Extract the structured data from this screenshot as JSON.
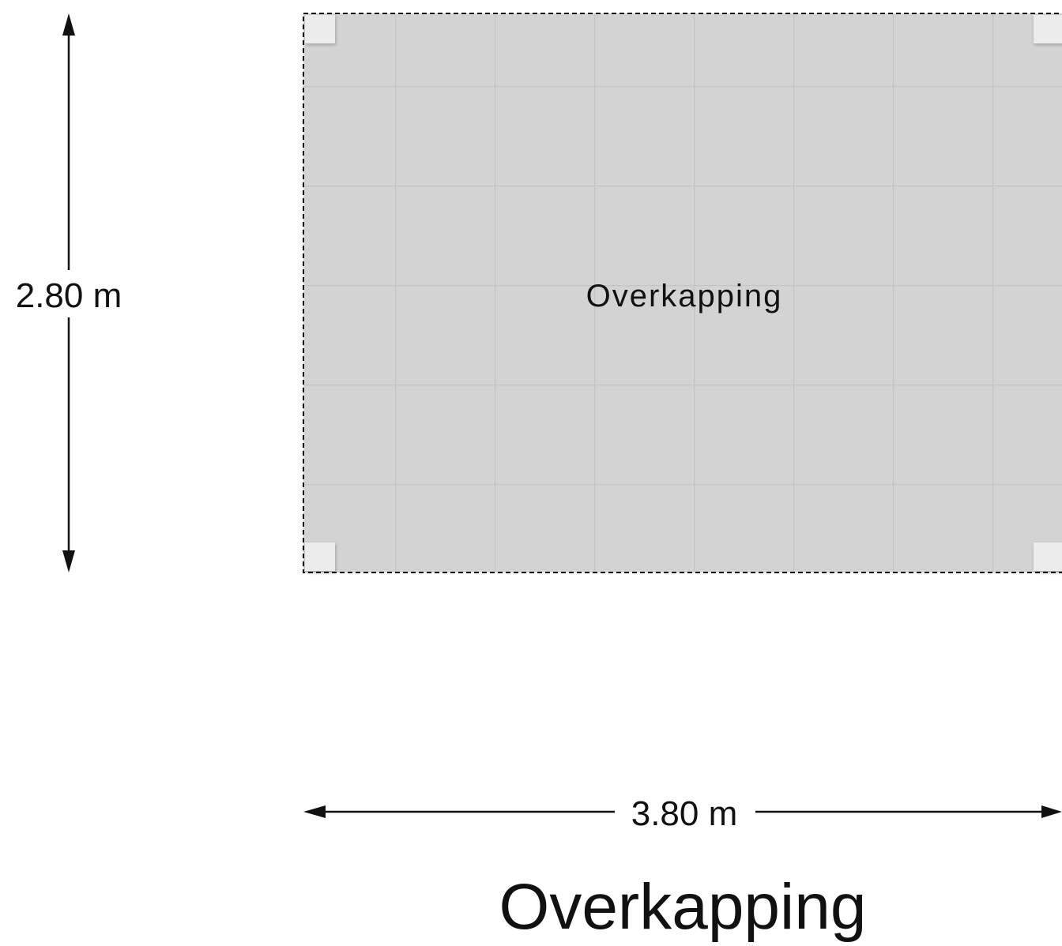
{
  "plan": {
    "room_name": "Overkapping",
    "height_dimension": "2.80 m",
    "width_dimension": "3.80 m",
    "title": "Overkapping"
  },
  "colors": {
    "floor": "#d3d3d3",
    "tile_line": "#c6c6c6",
    "outline": "#111111",
    "post": "#ececec",
    "text": "#111111"
  }
}
